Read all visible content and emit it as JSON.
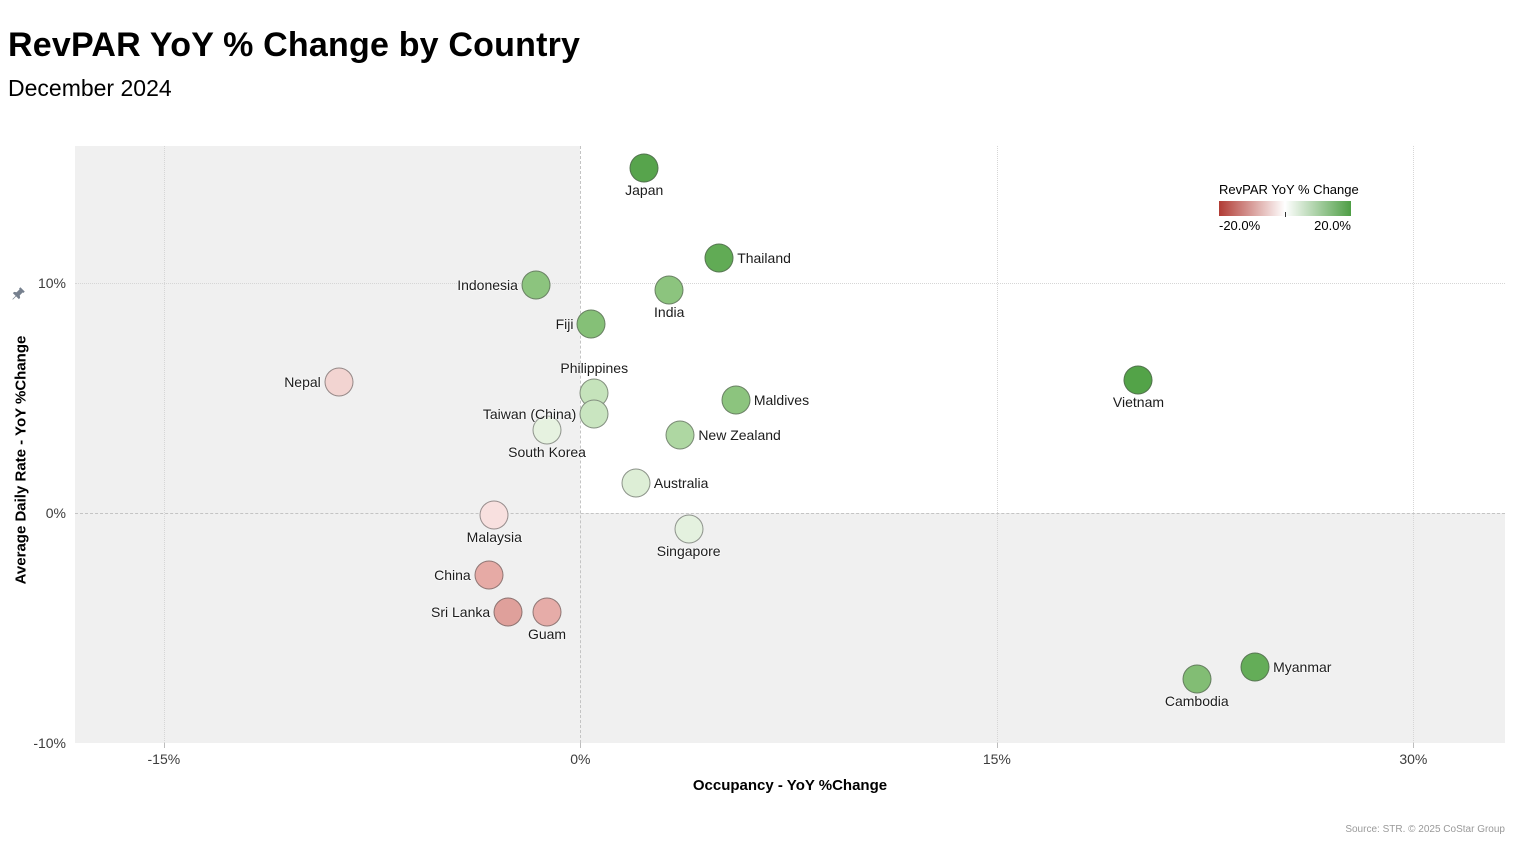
{
  "header": {
    "title": "RevPAR YoY % Change by Country",
    "subtitle": "December 2024"
  },
  "legend": {
    "title": "RevPAR YoY % Change",
    "min_label": "-20.0%",
    "max_label": "20.0%",
    "min_color": "#b13c35",
    "mid_color": "#ffffff",
    "max_color": "#4e9e45"
  },
  "source": "Source: STR. © 2025 CoStar Group",
  "chart_data": {
    "type": "scatter",
    "title": "RevPAR YoY % Change by Country",
    "subtitle": "December 2024",
    "xlabel": "Occupancy - YoY %Change",
    "ylabel": "Average Daily Rate - YoY %Change",
    "color_encoding": "RevPAR YoY % Change (red -20% to green +20%)",
    "xlim": [
      -18.2,
      33.3
    ],
    "ylim": [
      -10,
      15.95
    ],
    "grid": "quadrant shading: gray where occupancy<0 or ADR<0, white in top-right quadrant",
    "legend_position": "top-right inside plot",
    "x_ticks": [
      {
        "value": -15,
        "label": "-15%",
        "line": "dotted"
      },
      {
        "value": 0,
        "label": "0%",
        "line": "dashed"
      },
      {
        "value": 15,
        "label": "15%",
        "line": "dotted"
      },
      {
        "value": 30,
        "label": "30%",
        "line": "dotted"
      }
    ],
    "y_ticks": [
      {
        "value": -10,
        "label": "-10%",
        "line": "none"
      },
      {
        "value": 0,
        "label": "0%",
        "line": "dashed"
      },
      {
        "value": 10,
        "label": "10%",
        "line": "dotted"
      }
    ],
    "points": [
      {
        "country": "Japan",
        "occupancy_yoy": 2.3,
        "adr_yoy": 15.0,
        "revpar_color": "#57a44c",
        "label_pos": "bottom"
      },
      {
        "country": "Thailand",
        "occupancy_yoy": 5.0,
        "adr_yoy": 11.1,
        "revpar_color": "#61ab55",
        "label_pos": "right"
      },
      {
        "country": "India",
        "occupancy_yoy": 3.2,
        "adr_yoy": 9.7,
        "revpar_color": "#8cc47e",
        "label_pos": "bottom"
      },
      {
        "country": "Indonesia",
        "occupancy_yoy": -1.6,
        "adr_yoy": 9.9,
        "revpar_color": "#8cc47e",
        "label_pos": "left"
      },
      {
        "country": "Fiji",
        "occupancy_yoy": 0.4,
        "adr_yoy": 8.2,
        "revpar_color": "#85c077",
        "label_pos": "left"
      },
      {
        "country": "Nepal",
        "occupancy_yoy": -8.7,
        "adr_yoy": 5.7,
        "revpar_color": "#f2d4d1",
        "label_pos": "left"
      },
      {
        "country": "Philippines",
        "occupancy_yoy": 0.5,
        "adr_yoy": 5.2,
        "revpar_color": "#c5e3bb",
        "label_pos": "top"
      },
      {
        "country": "Taiwan (China)",
        "occupancy_yoy": 0.5,
        "adr_yoy": 4.3,
        "revpar_color": "#c9e5c0",
        "label_pos": "left"
      },
      {
        "country": "South Korea",
        "occupancy_yoy": -1.2,
        "adr_yoy": 3.6,
        "revpar_color": "#e6f2e0",
        "label_pos": "bottom"
      },
      {
        "country": "Vietnam",
        "occupancy_yoy": 20.1,
        "adr_yoy": 5.8,
        "revpar_color": "#53a348",
        "label_pos": "bottom"
      },
      {
        "country": "Maldives",
        "occupancy_yoy": 5.6,
        "adr_yoy": 4.9,
        "revpar_color": "#8cc47e",
        "label_pos": "right"
      },
      {
        "country": "New Zealand",
        "occupancy_yoy": 3.6,
        "adr_yoy": 3.4,
        "revpar_color": "#aed7a2",
        "label_pos": "right"
      },
      {
        "country": "Australia",
        "occupancy_yoy": 2.0,
        "adr_yoy": 1.3,
        "revpar_color": "#ddeed6",
        "label_pos": "right"
      },
      {
        "country": "Malaysia",
        "occupancy_yoy": -3.1,
        "adr_yoy": -0.1,
        "revpar_color": "#f8e0df",
        "label_pos": "bottom"
      },
      {
        "country": "Singapore",
        "occupancy_yoy": 3.9,
        "adr_yoy": -0.7,
        "revpar_color": "#e4f1df",
        "label_pos": "bottom"
      },
      {
        "country": "China",
        "occupancy_yoy": -3.3,
        "adr_yoy": -2.7,
        "revpar_color": "#e6aaa5",
        "label_pos": "left"
      },
      {
        "country": "Sri Lanka",
        "occupancy_yoy": -2.6,
        "adr_yoy": -4.3,
        "revpar_color": "#dfa09b",
        "label_pos": "left"
      },
      {
        "country": "Guam",
        "occupancy_yoy": -1.2,
        "adr_yoy": -4.3,
        "revpar_color": "#e6aca8",
        "label_pos": "bottom"
      },
      {
        "country": "Cambodia",
        "occupancy_yoy": 22.2,
        "adr_yoy": -7.2,
        "revpar_color": "#82bd74",
        "label_pos": "bottom"
      },
      {
        "country": "Myanmar",
        "occupancy_yoy": 24.3,
        "adr_yoy": -6.7,
        "revpar_color": "#64ad58",
        "label_pos": "right"
      }
    ]
  }
}
